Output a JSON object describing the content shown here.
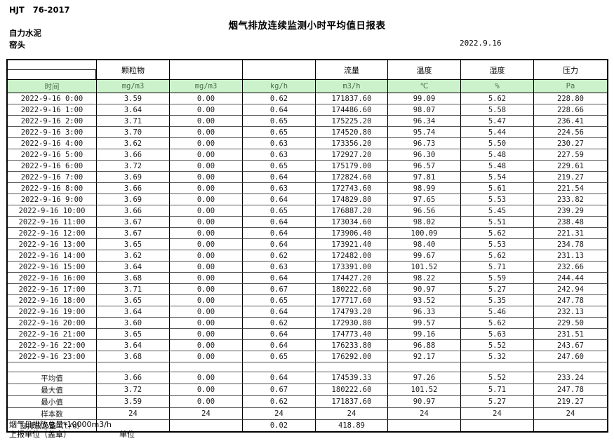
{
  "header": {
    "standard_no": "HJT   76-2017",
    "title": "烟气排放连续监测小时平均值日报表",
    "company": "自力水泥",
    "location": "窑头",
    "date": "2022.9.16"
  },
  "table": {
    "group_headers": [
      "",
      "颗粒物",
      "",
      "",
      "流量",
      "温度",
      "湿度",
      "压力"
    ],
    "unit_row": [
      "时间",
      "mg/m3",
      "mg/m3",
      "kg/h",
      "m3/h",
      "℃",
      "%",
      "Pa"
    ],
    "rows": [
      [
        "2022-9-16 0:00",
        "3.59",
        "0.00",
        "0.62",
        "171837.60",
        "99.09",
        "5.62",
        "228.80"
      ],
      [
        "2022-9-16 1:00",
        "3.64",
        "0.00",
        "0.64",
        "174486.60",
        "98.07",
        "5.58",
        "228.66"
      ],
      [
        "2022-9-16 2:00",
        "3.71",
        "0.00",
        "0.65",
        "175225.20",
        "96.34",
        "5.47",
        "236.41"
      ],
      [
        "2022-9-16 3:00",
        "3.70",
        "0.00",
        "0.65",
        "174520.80",
        "95.74",
        "5.44",
        "224.56"
      ],
      [
        "2022-9-16 4:00",
        "3.62",
        "0.00",
        "0.63",
        "173356.20",
        "96.73",
        "5.50",
        "230.27"
      ],
      [
        "2022-9-16 5:00",
        "3.66",
        "0.00",
        "0.63",
        "172927.20",
        "96.30",
        "5.48",
        "227.59"
      ],
      [
        "2022-9-16 6:00",
        "3.72",
        "0.00",
        "0.65",
        "175179.00",
        "96.57",
        "5.48",
        "229.61"
      ],
      [
        "2022-9-16 7:00",
        "3.69",
        "0.00",
        "0.64",
        "172824.60",
        "97.81",
        "5.54",
        "219.27"
      ],
      [
        "2022-9-16 8:00",
        "3.66",
        "0.00",
        "0.63",
        "172743.60",
        "98.99",
        "5.61",
        "221.54"
      ],
      [
        "2022-9-16 9:00",
        "3.69",
        "0.00",
        "0.64",
        "174829.80",
        "97.65",
        "5.53",
        "233.82"
      ],
      [
        "2022-9-16 10:00",
        "3.66",
        "0.00",
        "0.65",
        "176887.20",
        "96.56",
        "5.45",
        "239.29"
      ],
      [
        "2022-9-16 11:00",
        "3.67",
        "0.00",
        "0.64",
        "173034.60",
        "98.02",
        "5.51",
        "238.48"
      ],
      [
        "2022-9-16 12:00",
        "3.67",
        "0.00",
        "0.64",
        "173906.40",
        "100.09",
        "5.62",
        "221.31"
      ],
      [
        "2022-9-16 13:00",
        "3.65",
        "0.00",
        "0.64",
        "173921.40",
        "98.40",
        "5.53",
        "234.78"
      ],
      [
        "2022-9-16 14:00",
        "3.62",
        "0.00",
        "0.62",
        "172482.00",
        "99.67",
        "5.62",
        "231.13"
      ],
      [
        "2022-9-16 15:00",
        "3.64",
        "0.00",
        "0.63",
        "173391.00",
        "101.52",
        "5.71",
        "232.66"
      ],
      [
        "2022-9-16 16:00",
        "3.68",
        "0.00",
        "0.64",
        "174427.20",
        "98.22",
        "5.59",
        "244.44"
      ],
      [
        "2022-9-16 17:00",
        "3.71",
        "0.00",
        "0.67",
        "180222.60",
        "90.97",
        "5.27",
        "242.94"
      ],
      [
        "2022-9-16 18:00",
        "3.65",
        "0.00",
        "0.65",
        "177717.60",
        "93.52",
        "5.35",
        "247.78"
      ],
      [
        "2022-9-16 19:00",
        "3.64",
        "0.00",
        "0.64",
        "174793.20",
        "96.33",
        "5.46",
        "232.13"
      ],
      [
        "2022-9-16 20:00",
        "3.60",
        "0.00",
        "0.62",
        "172930.80",
        "99.57",
        "5.62",
        "229.50"
      ],
      [
        "2022-9-16 21:00",
        "3.65",
        "0.00",
        "0.64",
        "174773.40",
        "99.16",
        "5.63",
        "231.51"
      ],
      [
        "2022-9-16 22:00",
        "3.64",
        "0.00",
        "0.64",
        "176233.80",
        "96.88",
        "5.52",
        "243.67"
      ],
      [
        "2022-9-16 23:00",
        "3.68",
        "0.00",
        "0.65",
        "176292.00",
        "92.17",
        "5.32",
        "247.60"
      ]
    ],
    "summary": [
      {
        "label": "平均值",
        "values": [
          "3.66",
          "0.00",
          "0.64",
          "174539.33",
          "97.26",
          "5.52",
          "233.24"
        ]
      },
      {
        "label": "最大值",
        "values": [
          "3.72",
          "0.00",
          "0.67",
          "180222.60",
          "101.52",
          "5.71",
          "247.78"
        ]
      },
      {
        "label": "最小值",
        "values": [
          "3.59",
          "0.00",
          "0.62",
          "171837.60",
          "90.97",
          "5.27",
          "219.27"
        ]
      },
      {
        "label": "样本数",
        "values": [
          "24",
          "24",
          "24",
          "24",
          "24",
          "24",
          "24"
        ]
      },
      {
        "label": "日排放总量（t/d）",
        "values": [
          "",
          "",
          "0.02",
          "418.89",
          "",
          "",
          ""
        ]
      }
    ]
  },
  "footer": {
    "note": "烟气日排放总量*10000m3/h",
    "report_unit_label": "上报单位（盖章）",
    "unit_label": "单位"
  },
  "colors": {
    "header_row_bg": "#ccf2cc",
    "header_row_text": "#47704a",
    "border": "#000000"
  }
}
